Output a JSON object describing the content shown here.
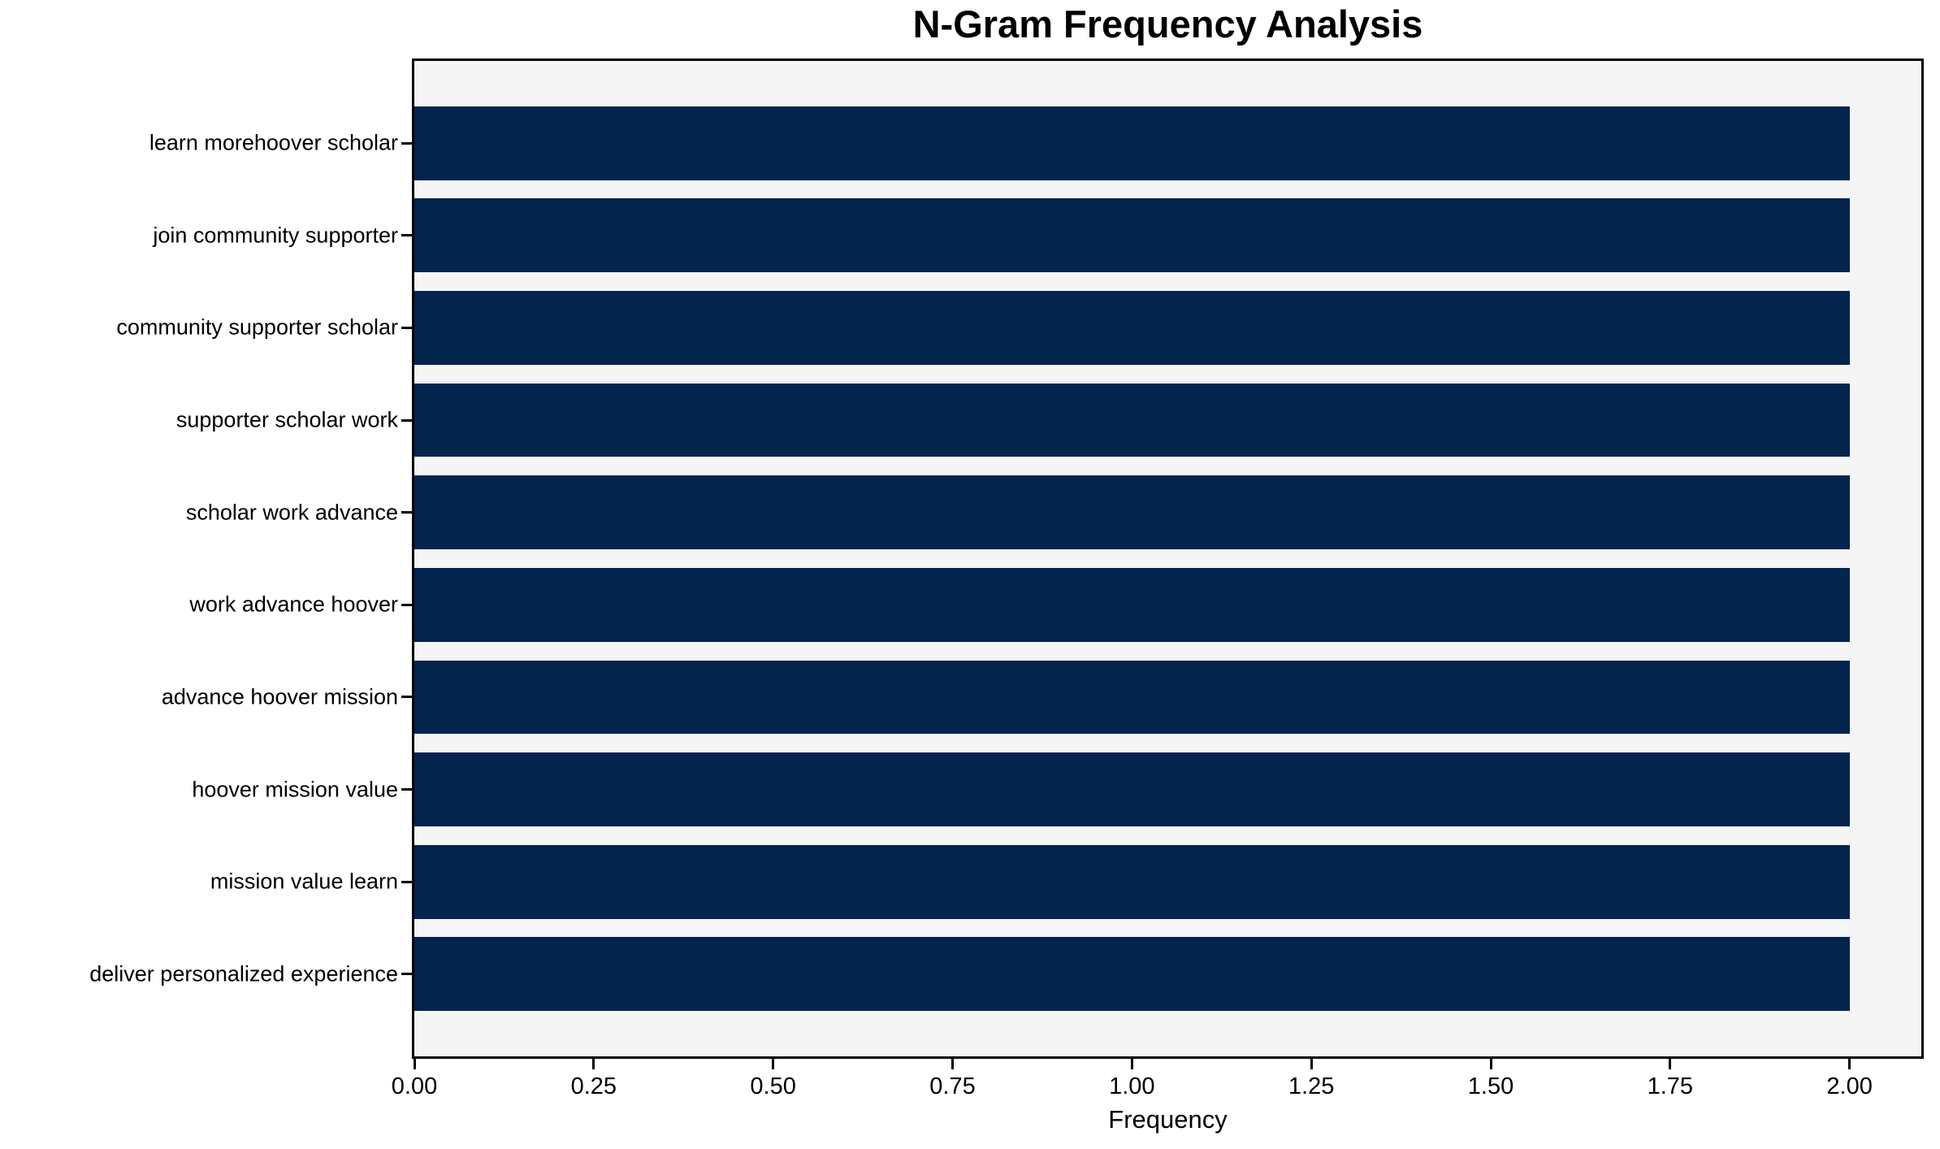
{
  "chart_data": {
    "type": "bar",
    "orientation": "horizontal",
    "title": "N-Gram Frequency Analysis",
    "xlabel": "Frequency",
    "ylabel": "",
    "categories": [
      "learn morehoover scholar",
      "join community supporter",
      "community supporter scholar",
      "supporter scholar work",
      "scholar work advance",
      "work advance hoover",
      "advance hoover mission",
      "hoover mission value",
      "mission value learn",
      "deliver personalized experience"
    ],
    "values": [
      2,
      2,
      2,
      2,
      2,
      2,
      2,
      2,
      2,
      2
    ],
    "xlim": [
      0,
      2.1
    ],
    "xticks": [
      0.0,
      0.25,
      0.5,
      0.75,
      1.0,
      1.25,
      1.5,
      1.75,
      2.0
    ],
    "xtick_labels": [
      "0.00",
      "0.25",
      "0.50",
      "0.75",
      "1.00",
      "1.25",
      "1.50",
      "1.75",
      "2.00"
    ],
    "grid": false,
    "legend": "none",
    "bar_color": "#02244d",
    "plot_background": "#f5f5f6",
    "spine_color": "#000000",
    "text_color": "#000000"
  }
}
